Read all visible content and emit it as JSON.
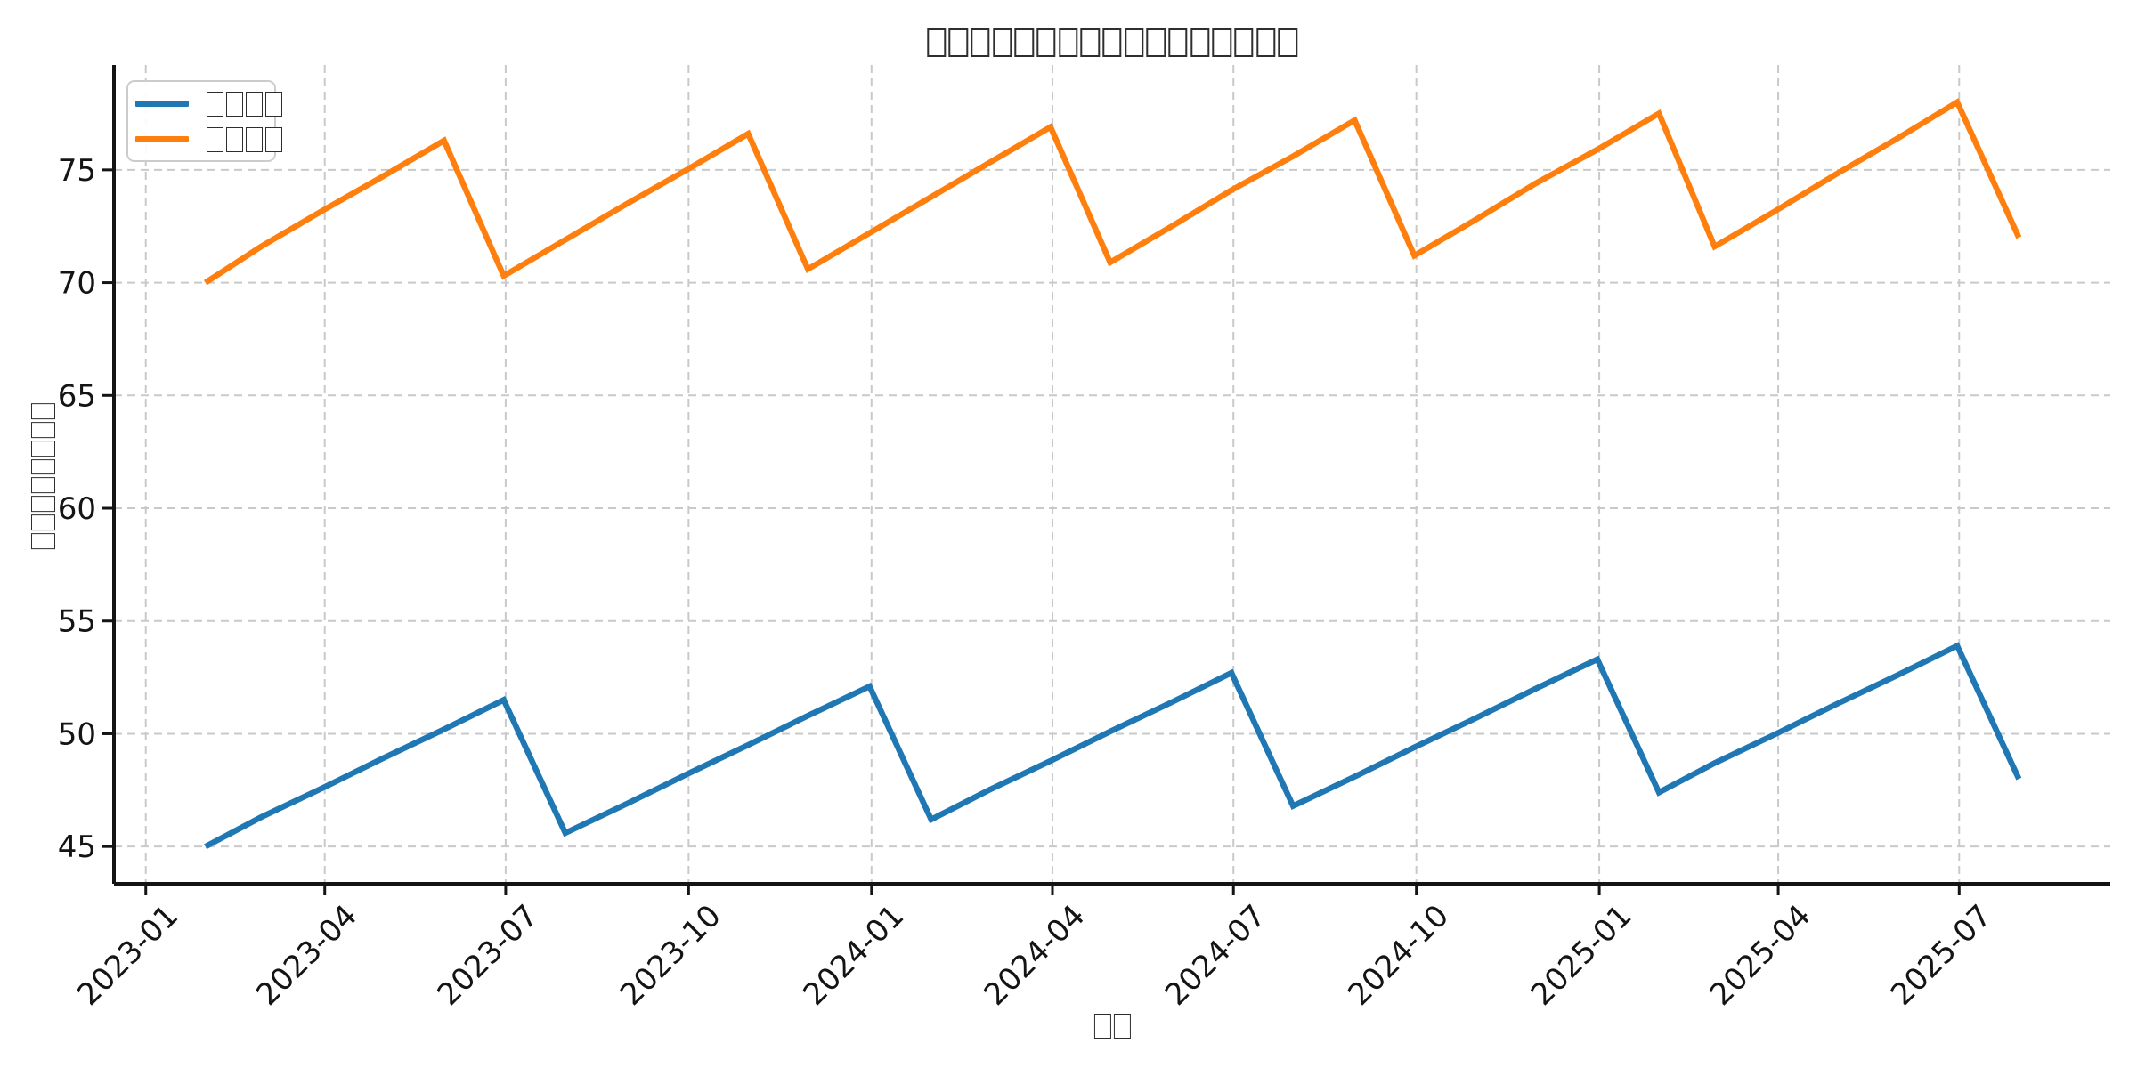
{
  "chart_data": {
    "type": "line",
    "title": "□□□□□□□□□□□□□□□□□",
    "xlabel": "□□",
    "ylabel": "□□□□□□□□",
    "x": [
      "2023-01-31",
      "2023-02-28",
      "2023-03-31",
      "2023-04-30",
      "2023-05-31",
      "2023-06-30",
      "2023-07-31",
      "2023-08-31",
      "2023-09-30",
      "2023-10-31",
      "2023-11-30",
      "2023-12-31",
      "2024-01-31",
      "2024-02-29",
      "2024-03-31",
      "2024-04-30",
      "2024-05-31",
      "2024-06-30",
      "2024-07-31",
      "2024-08-31",
      "2024-09-30",
      "2024-10-31",
      "2024-11-30",
      "2024-12-31",
      "2025-01-31",
      "2025-02-28",
      "2025-03-31",
      "2025-04-30",
      "2025-05-31",
      "2025-06-30",
      "2025-07-31"
    ],
    "series": [
      {
        "name": "□□□□",
        "color": "#1f77b4",
        "values": [
          45.0,
          46.3,
          47.6,
          48.9,
          50.2,
          51.5,
          45.6,
          46.9,
          48.2,
          49.5,
          50.8,
          52.1,
          46.2,
          47.5,
          48.8,
          50.1,
          51.4,
          52.7,
          46.8,
          48.1,
          49.4,
          50.7,
          52.0,
          53.3,
          47.4,
          48.7,
          50.0,
          51.3,
          52.6,
          53.9,
          48.0
        ]
      },
      {
        "name": "□□□□",
        "color": "#ff7f0e",
        "values": [
          70.0,
          71.6,
          73.2,
          74.7,
          76.3,
          70.3,
          71.9,
          73.5,
          75.0,
          76.6,
          70.6,
          72.2,
          73.8,
          75.3,
          76.9,
          70.9,
          72.5,
          74.1,
          75.6,
          77.2,
          71.2,
          72.8,
          74.4,
          75.9,
          77.5,
          71.6,
          73.2,
          74.8,
          76.4,
          78.0,
          72.0
        ]
      }
    ],
    "x_ticks": [
      {
        "label": "2023-01",
        "date": "2023-01-01"
      },
      {
        "label": "2023-04",
        "date": "2023-04-01"
      },
      {
        "label": "2023-07",
        "date": "2023-07-01"
      },
      {
        "label": "2023-10",
        "date": "2023-10-01"
      },
      {
        "label": "2024-01",
        "date": "2024-01-01"
      },
      {
        "label": "2024-04",
        "date": "2024-04-01"
      },
      {
        "label": "2024-07",
        "date": "2024-07-01"
      },
      {
        "label": "2024-10",
        "date": "2024-10-01"
      },
      {
        "label": "2025-01",
        "date": "2025-01-01"
      },
      {
        "label": "2025-04",
        "date": "2025-04-01"
      },
      {
        "label": "2025-07",
        "date": "2025-07-01"
      }
    ],
    "y_ticks": [
      45,
      50,
      55,
      60,
      65,
      70,
      75
    ],
    "xlim": [
      "2022-12-16",
      "2025-09-15"
    ],
    "ylim": [
      43.35,
      79.65
    ],
    "grid": true,
    "grid_style": "dashed",
    "grid_color": "#c9c9c9",
    "axis_color": "#141414",
    "background": "#ffffff",
    "legend_position": "upper-left"
  }
}
